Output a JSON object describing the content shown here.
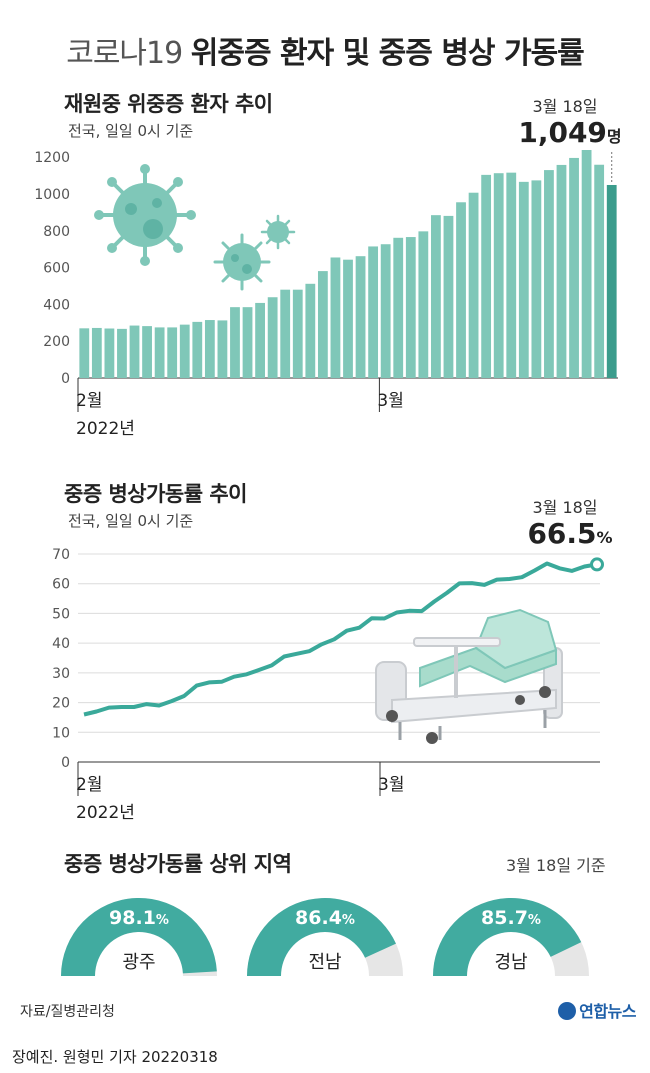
{
  "header": {
    "title_light": "코로나19",
    "title_bold": "위중증 환자 및 중증 병상 가동률"
  },
  "chart1": {
    "title": "재원중 위중증 환자 추이",
    "subtitle": "전국, 일일 0시 기준",
    "callout_date": "3월 18일",
    "callout_value": "1,049",
    "callout_unit": "명"
  },
  "chart2": {
    "title": "중증 병상가동률 추이",
    "subtitle": "전국, 일일 0시 기준",
    "callout_date": "3월 18일",
    "callout_value": "66.5",
    "callout_unit": "%"
  },
  "regions": {
    "title": "중증 병상가동률 상위 지역",
    "note": "3월 18일 기준",
    "items": [
      {
        "name": "광주",
        "value": 98.1,
        "label": "98.1",
        "unit": "%"
      },
      {
        "name": "전남",
        "value": 86.4,
        "label": "86.4",
        "unit": "%"
      },
      {
        "name": "경남",
        "value": 85.7,
        "label": "85.7",
        "unit": "%"
      }
    ]
  },
  "footer": {
    "source": "자료/질병관리청",
    "logo": "연합뉴스",
    "byline": "장예진. 원형민 기자  20220318"
  },
  "colors": {
    "bar": "#7fc7b8",
    "bar_last": "#3b9c8c",
    "line": "#3aa99a",
    "gauge": "#41aba0",
    "gauge_track": "#e6e6e6",
    "virus": "#7fc7b8"
  },
  "chart_data": [
    {
      "type": "bar",
      "title": "재원중 위중증 환자 추이",
      "x_tick_labels": [
        "2월\n2022년",
        "3월"
      ],
      "y_ticks": [
        0,
        200,
        400,
        600,
        800,
        1000,
        1200
      ],
      "ylim": [
        0,
        1250
      ],
      "grid": false,
      "values": [
        270,
        272,
        269,
        267,
        285,
        282,
        275,
        275,
        290,
        305,
        315,
        313,
        385,
        385,
        408,
        439,
        480,
        480,
        512,
        581,
        655,
        643,
        662,
        715,
        727,
        762,
        766,
        797,
        885,
        881,
        955,
        1007,
        1104,
        1113,
        1116,
        1066,
        1074,
        1130,
        1158,
        1196,
        1244,
        1159,
        1049
      ]
    },
    {
      "type": "line",
      "title": "중증 병상가동률 추이",
      "x_tick_labels": [
        "2월\n2022년",
        "3월"
      ],
      "y_ticks": [
        0,
        10,
        20,
        30,
        40,
        50,
        60,
        70
      ],
      "ylim": [
        0,
        70
      ],
      "grid": true,
      "values": [
        16.0,
        17.0,
        18.3,
        18.5,
        18.5,
        19.5,
        19.0,
        20.5,
        22.2,
        25.7,
        26.8,
        27.0,
        28.7,
        29.5,
        31.0,
        32.5,
        35.5,
        36.4,
        37.3,
        39.6,
        41.3,
        44.2,
        45.2,
        48.4,
        48.3,
        50.3,
        50.9,
        50.8,
        54.0,
        56.9,
        60.1,
        60.2,
        59.6,
        61.4,
        61.6,
        62.2,
        64.4,
        66.8,
        65.2,
        64.3,
        65.8,
        66.5
      ]
    }
  ]
}
